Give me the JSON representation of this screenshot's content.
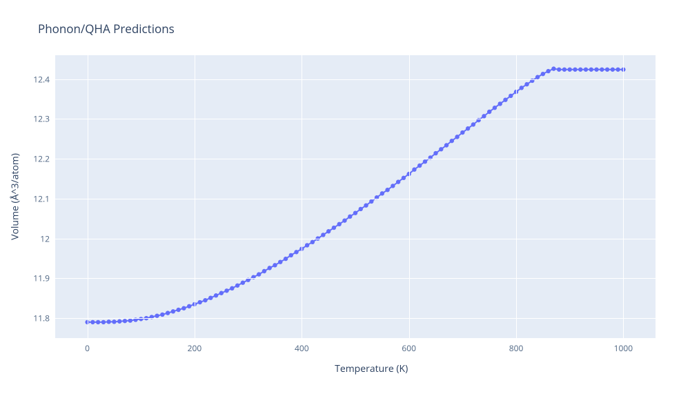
{
  "chart": {
    "type": "line_markers",
    "title": "Phonon/QHA Predictions",
    "xlabel": "Temperature (K)",
    "ylabel": "Volume (Å^3/atom)",
    "background_color": "#ffffff",
    "plot_background_color": "#e5ecf6",
    "grid_color": "#ffffff",
    "title_color": "#2a3f5f",
    "title_fontsize": 17,
    "tick_color": "#506784",
    "tick_fontsize": 12,
    "axis_label_color": "#2a3f5f",
    "axis_label_fontsize": 14,
    "line_color": "#636efa",
    "marker_color": "#636efa",
    "marker_size": 3.2,
    "line_width": 2,
    "xlim": [
      -60,
      1060
    ],
    "ylim": [
      11.75,
      12.46
    ],
    "xticks": [
      0,
      200,
      400,
      600,
      800,
      1000
    ],
    "yticks": [
      11.8,
      11.9,
      12,
      12.1,
      12.2,
      12.3,
      12.4
    ],
    "ytick_labels": [
      "11.8",
      "11.9",
      "12",
      "12.1",
      "12.2",
      "12.3",
      "12.4"
    ],
    "series": {
      "x": [
        0,
        10,
        20,
        30,
        40,
        50,
        60,
        70,
        80,
        90,
        100,
        110,
        120,
        130,
        140,
        150,
        160,
        170,
        180,
        190,
        200,
        210,
        220,
        230,
        240,
        250,
        260,
        270,
        280,
        290,
        300,
        310,
        320,
        330,
        340,
        350,
        360,
        370,
        380,
        390,
        400,
        410,
        420,
        430,
        440,
        450,
        460,
        470,
        480,
        490,
        500,
        510,
        520,
        530,
        540,
        550,
        560,
        570,
        580,
        590,
        600,
        610,
        620,
        630,
        640,
        650,
        660,
        670,
        680,
        690,
        700,
        710,
        720,
        730,
        740,
        750,
        760,
        770,
        780,
        790,
        800,
        810,
        820,
        830,
        840,
        850,
        860,
        870,
        880,
        890,
        900,
        910,
        920,
        930,
        940,
        950,
        960,
        970,
        980,
        990,
        1000
      ],
      "y": [
        11.79,
        11.79,
        11.79,
        11.79,
        11.791,
        11.791,
        11.792,
        11.793,
        11.794,
        11.796,
        11.798,
        11.8,
        11.803,
        11.806,
        11.809,
        11.813,
        11.817,
        11.821,
        11.825,
        11.83,
        11.835,
        11.84,
        11.845,
        11.851,
        11.857,
        11.863,
        11.869,
        11.875,
        11.882,
        11.889,
        11.896,
        11.903,
        11.91,
        11.918,
        11.926,
        11.933,
        11.941,
        11.949,
        11.958,
        11.966,
        11.974,
        11.983,
        11.991,
        12.0,
        12.009,
        12.018,
        12.027,
        12.036,
        12.045,
        12.055,
        12.064,
        12.074,
        12.083,
        12.093,
        12.103,
        12.113,
        12.122,
        12.132,
        12.142,
        12.152,
        12.162,
        12.173,
        12.183,
        12.193,
        12.203,
        12.214,
        12.224,
        12.234,
        12.245,
        12.255,
        12.266,
        12.276,
        12.286,
        12.297,
        12.307,
        12.318,
        12.328,
        12.338,
        12.348,
        12.358,
        12.368,
        12.378,
        12.387,
        12.396,
        12.405,
        12.413,
        12.42,
        12.426,
        12.424,
        12.424,
        12.424,
        12.424,
        12.424,
        12.424,
        12.424,
        12.424,
        12.424,
        12.424,
        12.424,
        12.424,
        12.424
      ]
    }
  }
}
